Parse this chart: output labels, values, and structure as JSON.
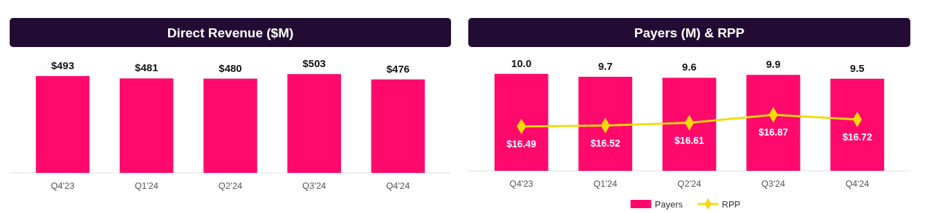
{
  "chart_data": [
    {
      "type": "bar",
      "title": "Direct Revenue ($M)",
      "categories": [
        "Q4'23",
        "Q1'24",
        "Q2'24",
        "Q3'24",
        "Q4'24"
      ],
      "values": [
        493,
        481,
        480,
        503,
        476
      ],
      "value_labels": [
        "$493",
        "$481",
        "$480",
        "$503",
        "$476"
      ],
      "color": "#ff0a6c",
      "tick_labels": "x"
    },
    {
      "type": "bar",
      "title": "Payers (M) & RPP",
      "categories": [
        "Q4'23",
        "Q1'24",
        "Q2'24",
        "Q3'24",
        "Q4'24"
      ],
      "series": [
        {
          "name": "Payers",
          "type": "bar",
          "color": "#ff0a6c",
          "values": [
            10.0,
            9.7,
            9.6,
            9.9,
            9.5
          ],
          "value_labels": [
            "10.0",
            "9.7",
            "9.6",
            "9.9",
            "9.5"
          ]
        },
        {
          "name": "RPP",
          "type": "line",
          "axis": "y2",
          "color": "#f5d90a",
          "values": [
            16.49,
            16.52,
            16.61,
            16.87,
            16.72
          ],
          "value_labels": [
            "$16.49",
            "$16.52",
            "$16.61",
            "$16.87",
            "$16.72"
          ]
        }
      ],
      "marker": "diamond",
      "legend": "bottom",
      "tick_labels": "x"
    }
  ]
}
